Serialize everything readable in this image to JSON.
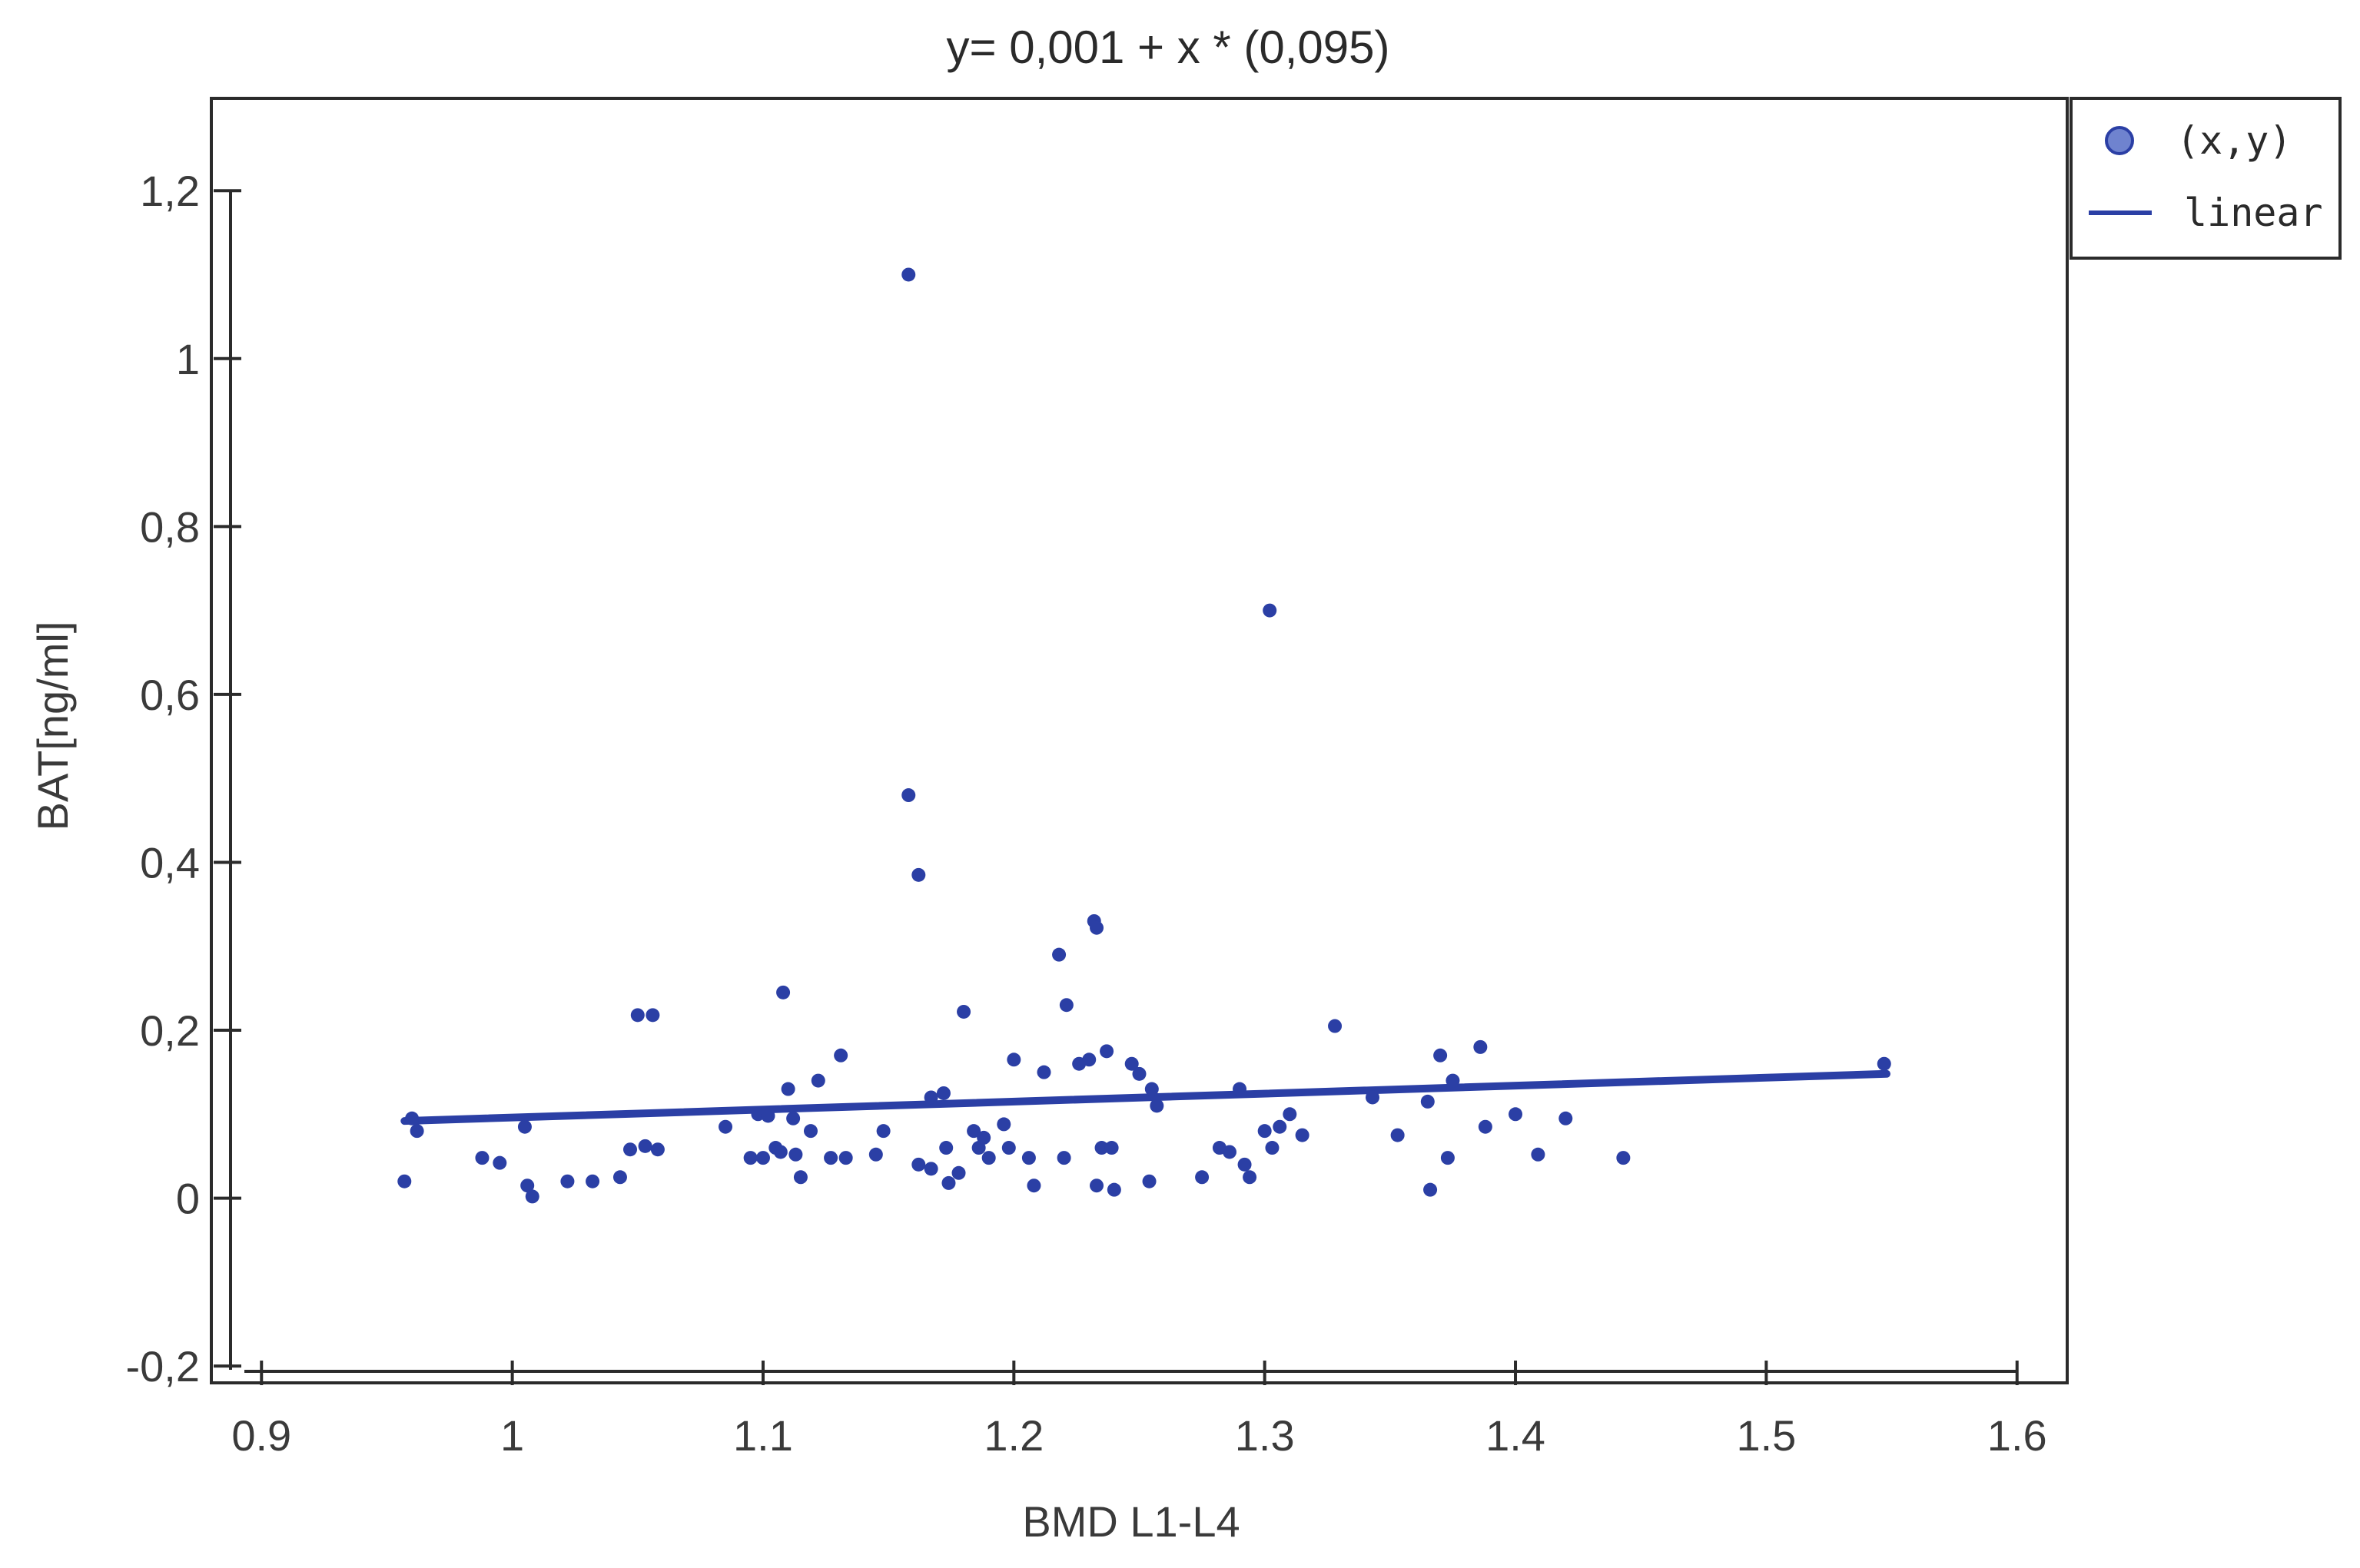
{
  "chart_data": {
    "type": "scatter",
    "title": "y= 0,001 + x * (0,095)",
    "xlabel": "BMD L1-L4",
    "ylabel": "BAT[ng/ml]",
    "xlim": [
      0.88,
      1.62
    ],
    "ylim": [
      -0.22,
      1.31
    ],
    "x_ticks": [
      0.9,
      1,
      1.1,
      1.2,
      1.3,
      1.4,
      1.5,
      1.6
    ],
    "x_tick_labels": [
      "0.9",
      "1",
      "1.1",
      "1.2",
      "1.3",
      "1.4",
      "1.5",
      "1.6"
    ],
    "y_ticks": [
      -0.2,
      0,
      0.2,
      0.4,
      0.6,
      0.8,
      1,
      1.2
    ],
    "y_tick_labels": [
      "-0,2",
      "0",
      "0,2",
      "0,4",
      "0,6",
      "0,8",
      "1",
      "1,2"
    ],
    "grid": false,
    "legend_position": "top-right",
    "color": "#2b3fa5",
    "series": [
      {
        "name": "(x,y)",
        "type": "scatter",
        "points": [
          [
            0.957,
            0.02
          ],
          [
            0.96,
            0.095
          ],
          [
            0.962,
            0.08
          ],
          [
            0.988,
            0.048
          ],
          [
            0.995,
            0.042
          ],
          [
            1.005,
            0.085
          ],
          [
            1.006,
            0.015
          ],
          [
            1.008,
            0.002
          ],
          [
            1.022,
            0.02
          ],
          [
            1.032,
            0.02
          ],
          [
            1.043,
            0.025
          ],
          [
            1.047,
            0.058
          ],
          [
            1.05,
            0.218
          ],
          [
            1.056,
            0.218
          ],
          [
            1.053,
            0.062
          ],
          [
            1.058,
            0.058
          ],
          [
            1.085,
            0.085
          ],
          [
            1.095,
            0.048
          ],
          [
            1.098,
            0.1
          ],
          [
            1.1,
            0.048
          ],
          [
            1.102,
            0.098
          ],
          [
            1.105,
            0.06
          ],
          [
            1.107,
            0.055
          ],
          [
            1.108,
            0.245
          ],
          [
            1.11,
            0.13
          ],
          [
            1.112,
            0.095
          ],
          [
            1.113,
            0.052
          ],
          [
            1.115,
            0.025
          ],
          [
            1.119,
            0.08
          ],
          [
            1.122,
            0.14
          ],
          [
            1.127,
            0.048
          ],
          [
            1.131,
            0.17
          ],
          [
            1.133,
            0.048
          ],
          [
            1.145,
            0.052
          ],
          [
            1.148,
            0.08
          ],
          [
            1.158,
            1.1
          ],
          [
            1.158,
            0.48
          ],
          [
            1.162,
            0.385
          ],
          [
            1.162,
            0.04
          ],
          [
            1.167,
            0.12
          ],
          [
            1.167,
            0.035
          ],
          [
            1.172,
            0.125
          ],
          [
            1.173,
            0.06
          ],
          [
            1.174,
            0.018
          ],
          [
            1.178,
            0.03
          ],
          [
            1.18,
            0.222
          ],
          [
            1.184,
            0.08
          ],
          [
            1.186,
            0.06
          ],
          [
            1.188,
            0.072
          ],
          [
            1.19,
            0.048
          ],
          [
            1.196,
            0.088
          ],
          [
            1.198,
            0.06
          ],
          [
            1.2,
            0.165
          ],
          [
            1.206,
            0.048
          ],
          [
            1.208,
            0.015
          ],
          [
            1.212,
            0.15
          ],
          [
            1.218,
            0.29
          ],
          [
            1.22,
            0.048
          ],
          [
            1.221,
            0.23
          ],
          [
            1.226,
            0.16
          ],
          [
            1.23,
            0.165
          ],
          [
            1.232,
            0.33
          ],
          [
            1.233,
            0.322
          ],
          [
            1.233,
            0.015
          ],
          [
            1.235,
            0.06
          ],
          [
            1.237,
            0.175
          ],
          [
            1.239,
            0.06
          ],
          [
            1.24,
            0.01
          ],
          [
            1.247,
            0.16
          ],
          [
            1.25,
            0.148
          ],
          [
            1.254,
            0.02
          ],
          [
            1.255,
            0.13
          ],
          [
            1.257,
            0.11
          ],
          [
            1.275,
            0.025
          ],
          [
            1.282,
            0.06
          ],
          [
            1.286,
            0.055
          ],
          [
            1.29,
            0.13
          ],
          [
            1.292,
            0.04
          ],
          [
            1.294,
            0.025
          ],
          [
            1.3,
            0.08
          ],
          [
            1.302,
            0.7
          ],
          [
            1.303,
            0.06
          ],
          [
            1.306,
            0.085
          ],
          [
            1.31,
            0.1
          ],
          [
            1.315,
            0.075
          ],
          [
            1.328,
            0.205
          ],
          [
            1.343,
            0.12
          ],
          [
            1.353,
            0.075
          ],
          [
            1.365,
            0.115
          ],
          [
            1.366,
            0.01
          ],
          [
            1.37,
            0.17
          ],
          [
            1.373,
            0.048
          ],
          [
            1.375,
            0.14
          ],
          [
            1.386,
            0.18
          ],
          [
            1.388,
            0.085
          ],
          [
            1.4,
            0.1
          ],
          [
            1.409,
            0.052
          ],
          [
            1.42,
            0.095
          ],
          [
            1.443,
            0.048
          ],
          [
            1.547,
            0.16
          ]
        ]
      },
      {
        "name": "linear",
        "type": "line",
        "intercept": 0.001,
        "slope": 0.095,
        "x_range": [
          0.957,
          1.548
        ]
      }
    ]
  }
}
